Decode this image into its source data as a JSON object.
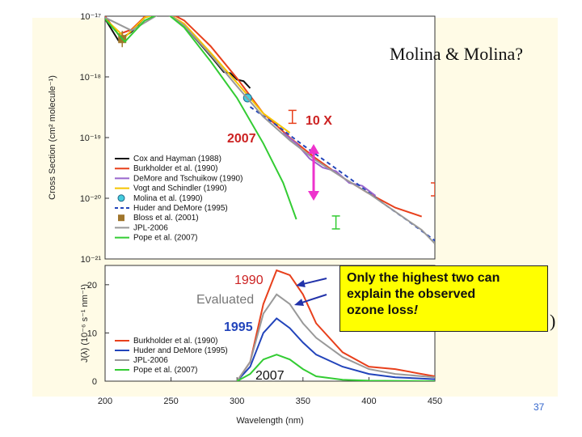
{
  "slide": {
    "title": "Molina & Molina?",
    "callout_line1": "Only the highest two can",
    "callout_line2": "explain the observed",
    "callout_line3_plain": "ozone loss",
    "callout_line3_em": "!",
    "paren_glyph": ")",
    "page_number": "37"
  },
  "annotations": {
    "factor": "10 X",
    "year_2007_top": "2007",
    "year_1990": "1990",
    "evaluated": "Evaluated",
    "year_1995": "1995",
    "year_2007_bottom": "2007"
  },
  "colors": {
    "red": "#e8401c",
    "black": "#111111",
    "purple": "#9966cc",
    "yellow": "#f5c400",
    "cyan": "#44ccdd",
    "blue": "#2244bb",
    "brown": "#a0762c",
    "gray": "#999999",
    "green": "#33cc33",
    "magenta": "#ee33cc",
    "annot_red": "#cc2222",
    "annot_gray": "#777777",
    "annot_pink": "#dd44aa",
    "callout_bg": "#ffff00"
  },
  "chart_data": [
    {
      "type": "line",
      "title": "",
      "xlabel": "",
      "ylabel": "Cross Section (cm² molecule⁻¹)",
      "yscale": "log",
      "xlim": [
        200,
        450
      ],
      "ylim": [
        1e-21,
        1e-17
      ],
      "y_ticks": [
        {
          "exp": -17,
          "label": "10⁻¹⁷"
        },
        {
          "exp": -18,
          "label": "10⁻¹⁸"
        },
        {
          "exp": -19,
          "label": "10⁻¹⁹"
        },
        {
          "exp": -20,
          "label": "10⁻²⁰"
        },
        {
          "exp": -21,
          "label": "10⁻²¹"
        }
      ],
      "legend_position": "bottom-left",
      "series": [
        {
          "name": "Cox and Hayman (1988)",
          "color_key": "black",
          "style": "solid",
          "x": [
            200,
            210,
            220,
            230,
            245,
            260,
            280,
            290,
            295,
            300,
            305,
            310
          ],
          "y": [
            9e-18,
            4e-18,
            5.5e-18,
            9.5e-18,
            1.2e-17,
            7e-18,
            2.2e-18,
            1.2e-18,
            1.15e-18,
            9e-19,
            8.5e-19,
            6.5e-19
          ]
        },
        {
          "name": "Burkholder et al. (1990)",
          "color_key": "red",
          "style": "solid",
          "x": [
            200,
            210,
            220,
            230,
            245,
            260,
            280,
            300,
            320,
            340,
            360,
            380,
            400,
            420,
            440
          ],
          "y": [
            1e-17,
            5e-18,
            6e-18,
            9.8e-18,
            1.25e-17,
            8.5e-18,
            3.2e-18,
            9.5e-19,
            2.5e-19,
            1e-19,
            4.5e-20,
            2.2e-20,
            1.2e-20,
            7e-21,
            5e-21
          ]
        },
        {
          "name": "DeMore and Tschuikow (1990)",
          "color_key": "purple",
          "style": "solid",
          "x": [
            335,
            345,
            355,
            365,
            375,
            385,
            395,
            405
          ],
          "y": [
            1.2e-19,
            8e-20,
            4.5e-20,
            3.2e-20,
            2.8e-20,
            1.8e-20,
            1.6e-20,
            1.1e-20
          ]
        },
        {
          "name": "Vogt and Schindler (1990)",
          "color_key": "yellow",
          "style": "solid",
          "x": [
            200,
            215,
            230,
            245,
            260,
            280,
            300,
            320,
            340
          ],
          "y": [
            9e-18,
            4.5e-18,
            9.5e-18,
            1.2e-17,
            7.5e-18,
            2.5e-18,
            8e-19,
            2.5e-19,
            1.2e-19
          ]
        },
        {
          "name": "Molina et al. (1990)",
          "color_key": "cyan",
          "style": "marker",
          "x": [
            308
          ],
          "y": [
            4.5e-19
          ]
        },
        {
          "name": "Huder and DeMore (1995)",
          "color_key": "blue",
          "style": "dashed",
          "x": [
            310,
            330,
            350,
            370,
            390,
            410,
            430,
            450
          ],
          "y": [
            3.2e-19,
            1.6e-19,
            7.5e-20,
            3.7e-20,
            1.8e-20,
            8.5e-21,
            4.2e-21,
            2e-21
          ]
        },
        {
          "name": "Bloss et al. (2001)",
          "color_key": "brown",
          "style": "marker",
          "x": [
            213
          ],
          "y": [
            4.2e-18
          ]
        },
        {
          "name": "JPL-2006",
          "color_key": "gray",
          "style": "solid",
          "x": [
            200,
            220,
            245,
            260,
            280,
            300,
            320,
            340,
            360,
            380,
            400,
            420,
            440,
            450
          ],
          "y": [
            9.5e-18,
            5.8e-18,
            1.22e-17,
            7e-18,
            2.3e-18,
            7e-19,
            2.2e-19,
            9e-20,
            4.2e-20,
            2.2e-20,
            1.2e-20,
            6e-21,
            3e-21,
            1.8e-21
          ]
        },
        {
          "name": "Pope et al. (2007)",
          "color_key": "green",
          "style": "solid",
          "x": [
            200,
            215,
            230,
            245,
            260,
            280,
            300,
            320,
            335,
            345
          ],
          "y": [
            9e-18,
            3.8e-18,
            8.5e-18,
            1.2e-17,
            6.5e-18,
            1.8e-18,
            4.5e-19,
            8e-20,
            1.8e-20,
            4.5e-21
          ]
        }
      ]
    },
    {
      "type": "line",
      "title": "",
      "xlabel": "Wavelength (nm)",
      "ylabel": "J(λ) (10⁻⁶ s⁻¹ nm⁻¹)",
      "xlim": [
        200,
        450
      ],
      "ylim": [
        0,
        24
      ],
      "x_ticks": [
        200,
        250,
        300,
        350,
        400,
        450
      ],
      "y_ticks": [
        0,
        10,
        20
      ],
      "legend_position": "bottom-left",
      "series": [
        {
          "name": "Burkholder et al. (1990)",
          "color_key": "red",
          "x": [
            300,
            310,
            320,
            330,
            340,
            350,
            360,
            380,
            400,
            420,
            440,
            450
          ],
          "y": [
            0,
            4,
            16,
            23,
            22,
            18,
            12,
            6,
            3,
            2.5,
            1.5,
            1
          ]
        },
        {
          "name": "Huder and DeMore (1995)",
          "color_key": "blue",
          "x": [
            300,
            310,
            320,
            330,
            340,
            350,
            360,
            380,
            400,
            420,
            450
          ],
          "y": [
            0,
            3,
            10,
            13,
            11,
            8,
            5.5,
            3,
            1.5,
            0.8,
            0.4
          ]
        },
        {
          "name": "JPL-2006",
          "color_key": "gray",
          "x": [
            300,
            310,
            320,
            330,
            340,
            350,
            360,
            380,
            400,
            420,
            450
          ],
          "y": [
            0,
            4,
            14,
            18,
            16,
            12,
            9,
            5,
            2.5,
            1.5,
            0.8
          ]
        },
        {
          "name": "Pope et al. (2007)",
          "color_key": "green",
          "x": [
            300,
            310,
            320,
            330,
            340,
            350,
            360,
            380,
            400,
            450
          ],
          "y": [
            0,
            1.5,
            4.5,
            5.5,
            4.5,
            2.5,
            1,
            0.3,
            0.1,
            0
          ]
        }
      ]
    }
  ]
}
